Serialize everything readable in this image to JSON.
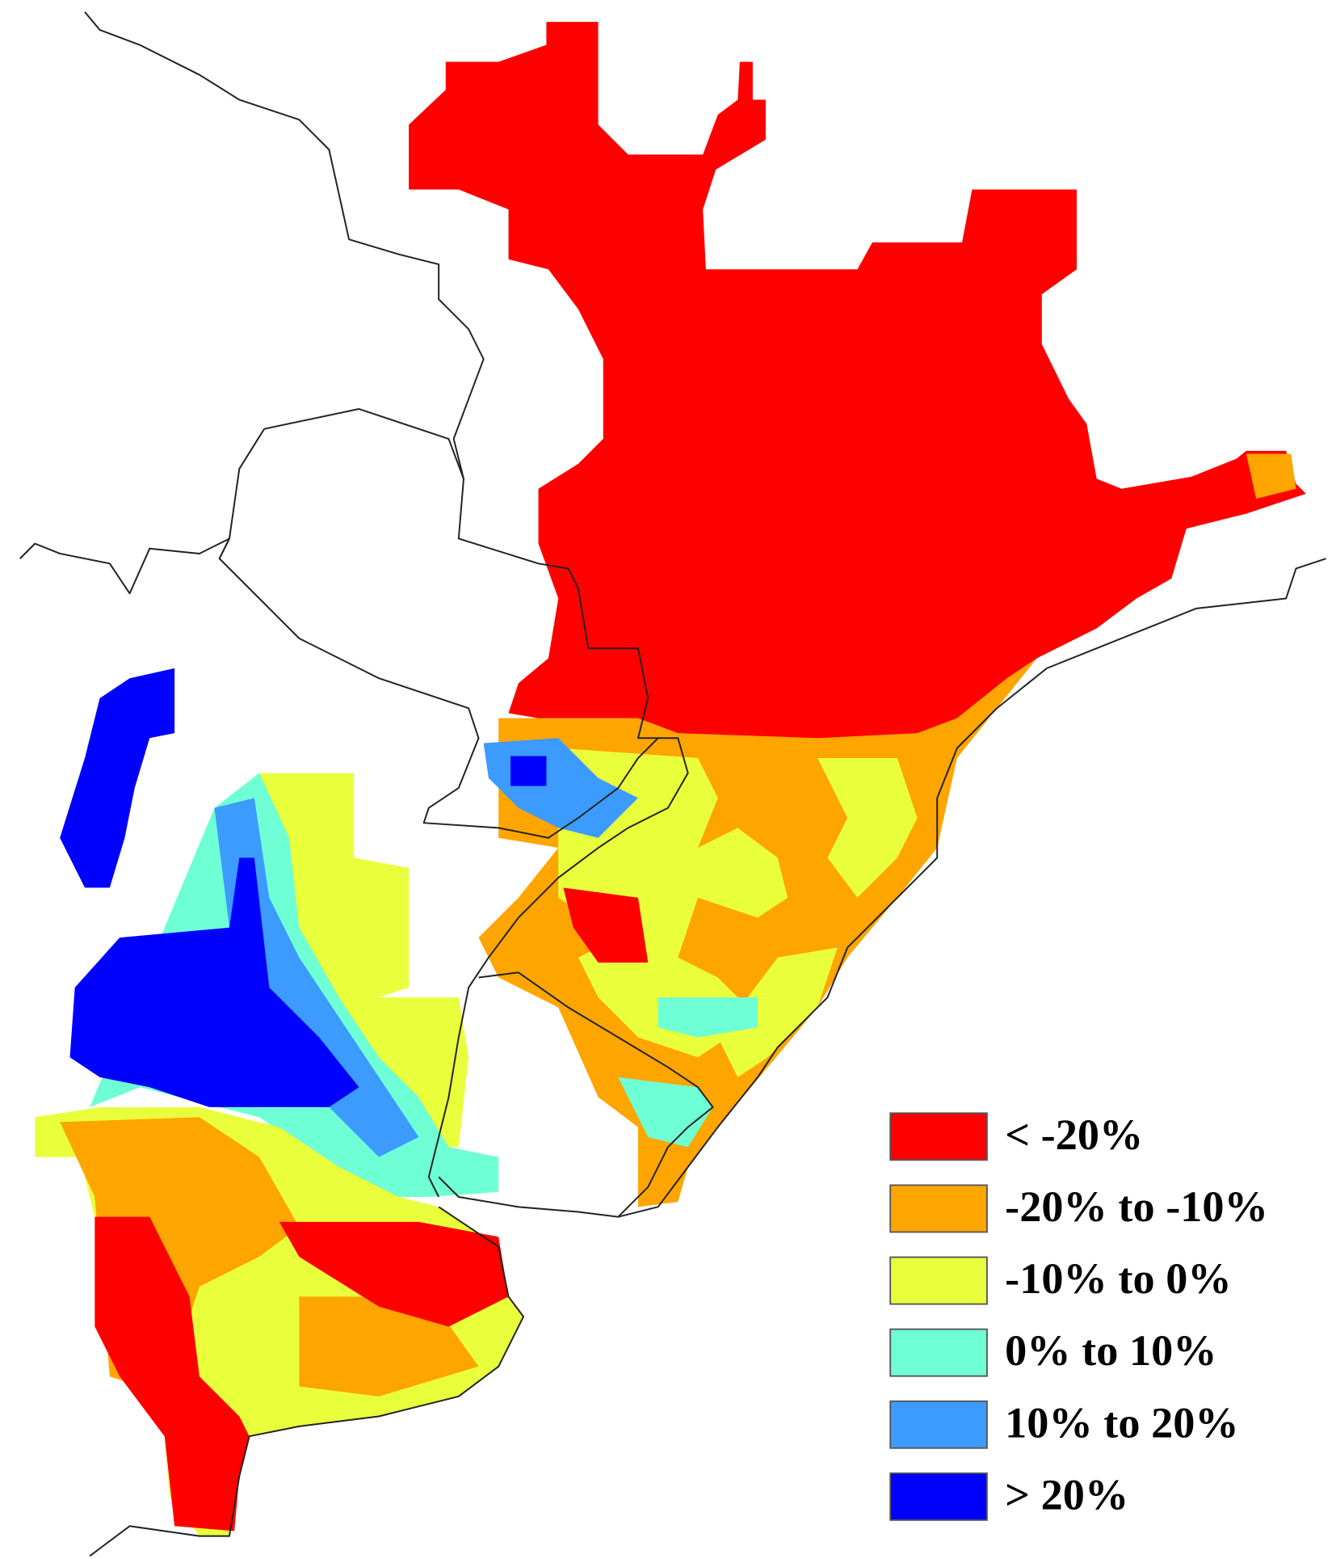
{
  "legend": {
    "items": [
      {
        "label": "< -20%",
        "color": "#ff0000"
      },
      {
        "label": "-20% to -10%",
        "color": "#ffa500"
      },
      {
        "label": "-10% to 0%",
        "color": "#eaff3c"
      },
      {
        "label": "0% to 10%",
        "color": "#6fffd4"
      },
      {
        "label": "10% to 20%",
        "color": "#3c9bff"
      },
      {
        "label": "> 20%",
        "color": "#0000ff"
      }
    ]
  }
}
